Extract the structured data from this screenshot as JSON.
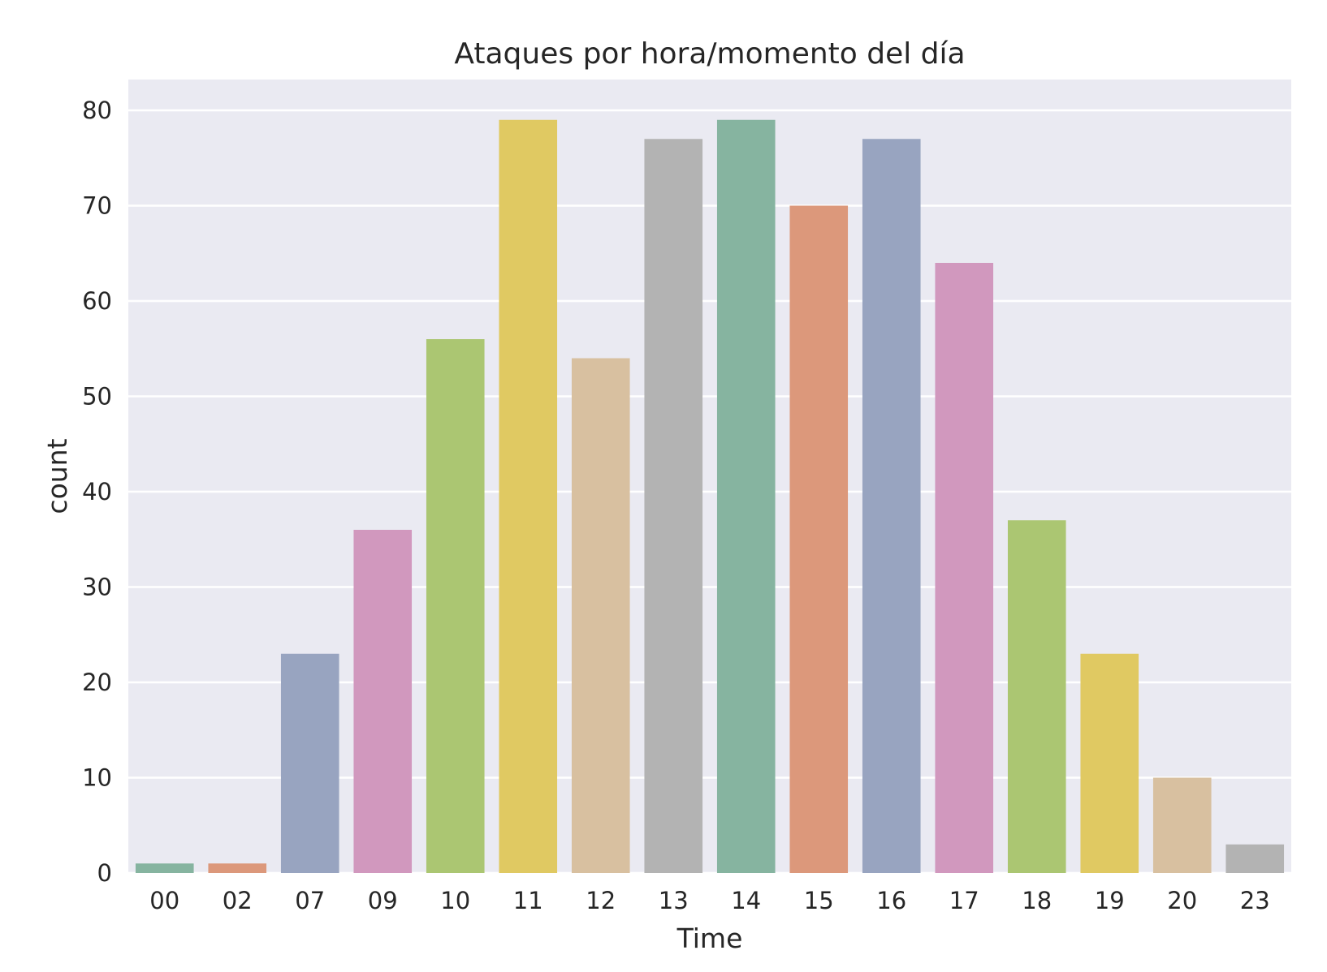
{
  "chart_data": {
    "type": "bar",
    "title": "Ataques por hora/momento del día",
    "xlabel": "Time",
    "ylabel": "count",
    "categories": [
      "00",
      "02",
      "07",
      "09",
      "10",
      "11",
      "12",
      "13",
      "14",
      "15",
      "16",
      "17",
      "18",
      "19",
      "20",
      "23"
    ],
    "values": [
      1,
      1,
      23,
      36,
      56,
      79,
      54,
      77,
      79,
      70,
      77,
      64,
      37,
      23,
      10,
      3
    ],
    "colors": [
      "#86b4a0",
      "#dc987b",
      "#98a4c0",
      "#d198be",
      "#abc672",
      "#e0c962",
      "#d8c0a0",
      "#b3b3b3",
      "#86b4a0",
      "#dc987b",
      "#98a4c0",
      "#d198be",
      "#abc672",
      "#e0c962",
      "#d8c0a0",
      "#b3b3b3"
    ],
    "ylim": [
      0,
      83
    ],
    "yticks": [
      0,
      10,
      20,
      30,
      40,
      50,
      60,
      70,
      80
    ],
    "grid": true,
    "background": "#eaeaf2"
  }
}
